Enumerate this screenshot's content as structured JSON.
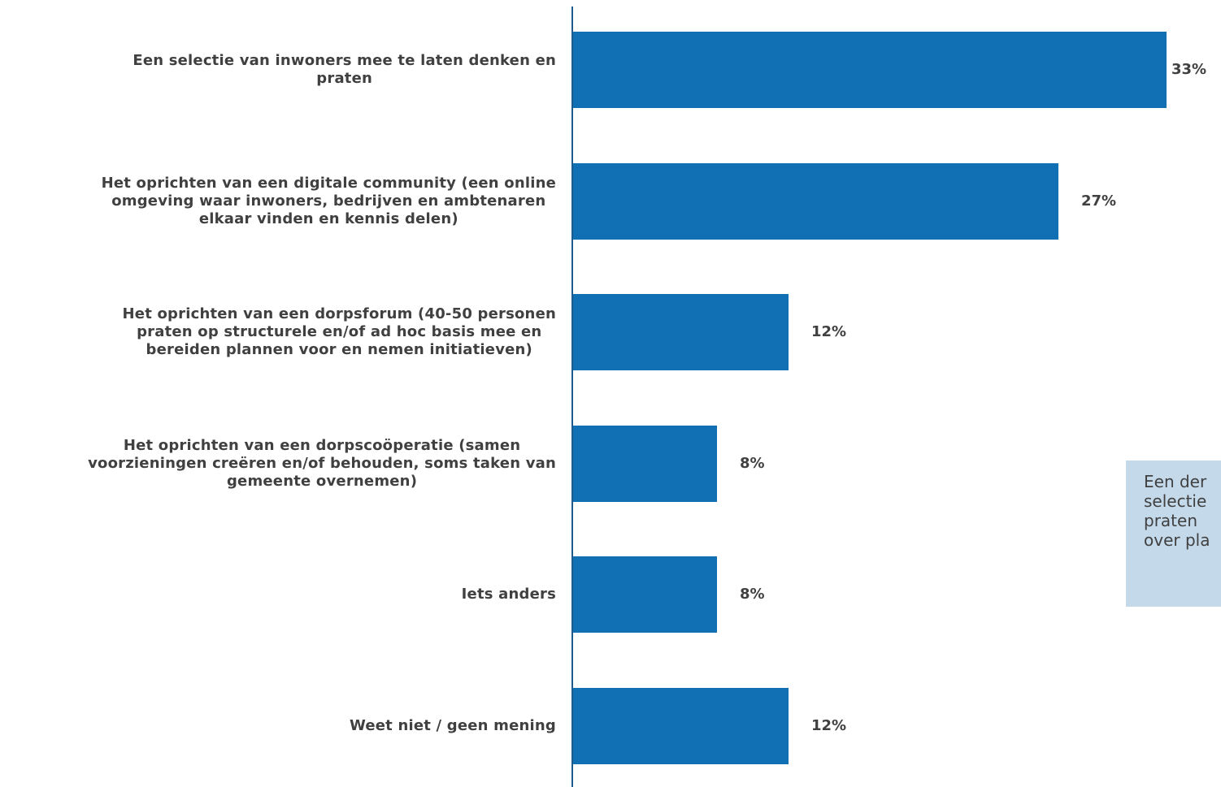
{
  "chart_data": {
    "type": "bar",
    "orientation": "horizontal",
    "categories": [
      "Een selectie van inwoners mee te laten denken en praten",
      "Het oprichten van een digitale community (een online omgeving waar inwoners, bedrijven en ambtenaren elkaar vinden en kennis delen)",
      "Het oprichten van een dorpsforum (40-50 personen praten op structurele en/of ad hoc basis mee en bereiden plannen voor en nemen initiatieven)",
      "Het oprichten van een dorpscoöperatie (samen voorzieningen creëren en/of behouden, soms taken van gemeente overnemen)",
      "Iets anders",
      "Weet niet / geen mening"
    ],
    "values": [
      33,
      27,
      12,
      8,
      8,
      12
    ],
    "value_labels": [
      "33%",
      "27%",
      "12%",
      "8%",
      "8%",
      "12%"
    ],
    "unit": "%",
    "xlim": [
      0,
      34
    ],
    "grid": false,
    "bar_color": "#1170b4",
    "axis_color": "#1f5a8a",
    "text_color": "#404040"
  },
  "callout": {
    "text": "Een der\nselectie\npraten \nover pla",
    "background": "#c4d9ea"
  }
}
